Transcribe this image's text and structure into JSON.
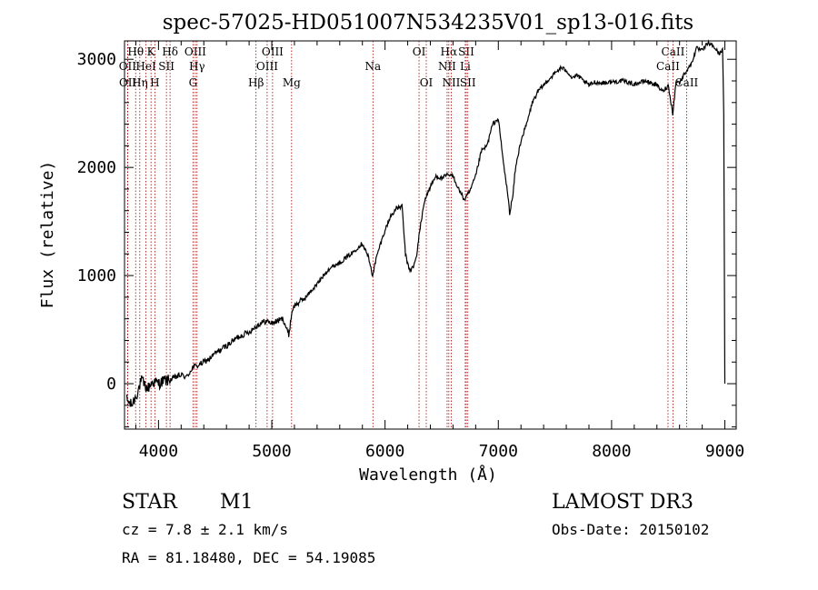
{
  "chart_data": {
    "type": "line",
    "title": "spec-57025-HD051007N534235V01_sp13-016.fits",
    "xlabel": "Wavelength (Å)",
    "ylabel": "Flux (relative)",
    "xlim": [
      3700,
      9100
    ],
    "ylim": [
      -420,
      3170
    ],
    "x_ticks": [
      4000,
      5000,
      6000,
      7000,
      8000,
      9000
    ],
    "y_ticks": [
      0,
      1000,
      2000,
      3000
    ],
    "x": [
      3720,
      3760,
      3800,
      3850,
      3900,
      3950,
      4000,
      4050,
      4100,
      4150,
      4200,
      4250,
      4300,
      4350,
      4400,
      4450,
      4500,
      4600,
      4700,
      4800,
      4850,
      4900,
      4950,
      5000,
      5100,
      5150,
      5180,
      5200,
      5250,
      5300,
      5400,
      5500,
      5600,
      5700,
      5800,
      5850,
      5890,
      5920,
      5950,
      6000,
      6050,
      6100,
      6150,
      6180,
      6200,
      6220,
      6250,
      6280,
      6300,
      6350,
      6400,
      6450,
      6500,
      6550,
      6600,
      6650,
      6700,
      6750,
      6800,
      6850,
      6900,
      6950,
      7000,
      7050,
      7080,
      7100,
      7130,
      7150,
      7200,
      7250,
      7300,
      7350,
      7400,
      7450,
      7500,
      7550,
      7600,
      7650,
      7700,
      7750,
      7800,
      7850,
      7900,
      8000,
      8100,
      8200,
      8300,
      8400,
      8450,
      8500,
      8540,
      8570,
      8600,
      8650,
      8700,
      8750,
      8800,
      8850,
      8900,
      8950,
      8980,
      8990,
      9000
    ],
    "y": [
      -150,
      -200,
      -120,
      30,
      -50,
      20,
      0,
      30,
      30,
      60,
      80,
      60,
      150,
      170,
      200,
      230,
      280,
      350,
      430,
      480,
      520,
      560,
      580,
      560,
      600,
      450,
      680,
      720,
      760,
      800,
      920,
      1060,
      1120,
      1200,
      1300,
      1180,
      1000,
      1150,
      1260,
      1420,
      1550,
      1620,
      1640,
      1200,
      1100,
      1050,
      1080,
      1180,
      1380,
      1700,
      1820,
      1920,
      1900,
      1930,
      1920,
      1800,
      1700,
      1780,
      1920,
      2150,
      2200,
      2400,
      2450,
      2000,
      1780,
      1580,
      1750,
      1980,
      2250,
      2400,
      2600,
      2700,
      2760,
      2820,
      2870,
      2920,
      2900,
      2830,
      2850,
      2800,
      2760,
      2790,
      2780,
      2790,
      2800,
      2770,
      2800,
      2760,
      2700,
      2760,
      2500,
      2800,
      2780,
      2880,
      2950,
      3100,
      3080,
      3150,
      3120,
      3050,
      3100,
      2500,
      0
    ],
    "lines": [
      {
        "name": "Hθ",
        "wavelength": 3798,
        "row": 0
      },
      {
        "name": "OII",
        "wavelength": 3727,
        "row": 1
      },
      {
        "name": "OII",
        "wavelength": 3729,
        "row": 2
      },
      {
        "name": "Hη",
        "wavelength": 3835,
        "row": 2
      },
      {
        "name": "HeI",
        "wavelength": 3889,
        "row": 1
      },
      {
        "name": "K",
        "wavelength": 3934,
        "row": 0
      },
      {
        "name": "H",
        "wavelength": 3968,
        "row": 2
      },
      {
        "name": "SII",
        "wavelength": 4070,
        "row": 1
      },
      {
        "name": "Hδ",
        "wavelength": 4102,
        "row": 0
      },
      {
        "name": "OIII",
        "wavelength": 4325,
        "row": 0
      },
      {
        "name": "Hγ",
        "wavelength": 4340,
        "row": 1
      },
      {
        "name": "G",
        "wavelength": 4305,
        "row": 2
      },
      {
        "name": "Hβ",
        "wavelength": 4861,
        "row": 2
      },
      {
        "name": "OIII",
        "wavelength": 4959,
        "row": 1
      },
      {
        "name": "OIII",
        "wavelength": 5007,
        "row": 0
      },
      {
        "name": "Mg",
        "wavelength": 5175,
        "row": 2
      },
      {
        "name": "Na",
        "wavelength": 5893,
        "row": 1
      },
      {
        "name": "OI",
        "wavelength": 6300,
        "row": 0
      },
      {
        "name": "OI",
        "wavelength": 6364,
        "row": 2
      },
      {
        "name": "Hα",
        "wavelength": 6563,
        "row": 0
      },
      {
        "name": "NII",
        "wavelength": 6548,
        "row": 1
      },
      {
        "name": "NII",
        "wavelength": 6584,
        "row": 2
      },
      {
        "name": "SII",
        "wavelength": 6717,
        "row": 0
      },
      {
        "name": "Li",
        "wavelength": 6708,
        "row": 1
      },
      {
        "name": "SII",
        "wavelength": 6731,
        "row": 2
      },
      {
        "name": "CaII",
        "wavelength": 8542,
        "row": 0
      },
      {
        "name": "CaII",
        "wavelength": 8498,
        "row": 1
      },
      {
        "name": "CaII",
        "wavelength": 8662,
        "row": 2
      }
    ]
  },
  "info": {
    "obj_class": "STAR",
    "subclass": "M1",
    "cz": "cz =  7.8 ± 2.1 km/s",
    "radec": "RA =  81.18480, DEC =  54.19085",
    "survey": "LAMOST DR3",
    "obs_date": "Obs-Date: 20150102"
  },
  "colors": {
    "line_marker": "#a00000",
    "spectrum": "#000000"
  }
}
